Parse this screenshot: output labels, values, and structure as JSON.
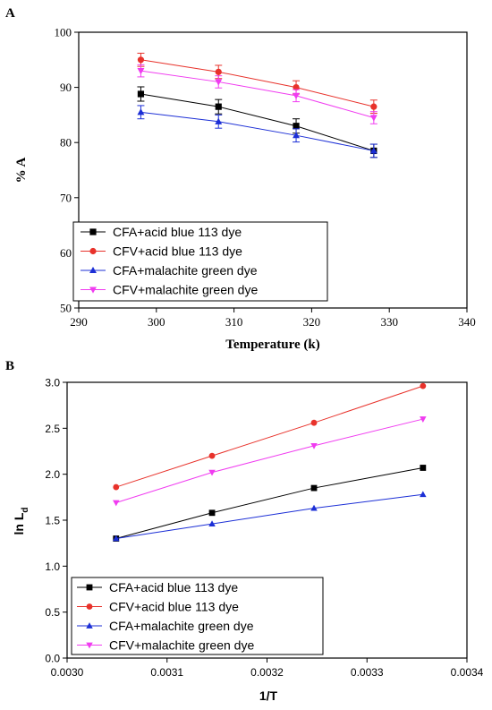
{
  "panels": [
    {
      "label": "A"
    },
    {
      "label": "B"
    }
  ],
  "chart_data": [
    {
      "type": "line",
      "panel": "A",
      "xlabel": "Temperature (k)",
      "ylabel": "% A",
      "xlim": [
        290,
        340
      ],
      "ylim": [
        50,
        100
      ],
      "xticks": [
        "290",
        "300",
        "310",
        "320",
        "330",
        "340"
      ],
      "yticks": [
        "50",
        "60",
        "70",
        "80",
        "90",
        "100"
      ],
      "x": [
        298,
        308,
        318,
        328
      ],
      "error_bars": true,
      "grid": false,
      "legend_position": "bottom-left",
      "series": [
        {
          "name": "CFA+acid blue 113 dye",
          "values": [
            88.8,
            86.5,
            83.0,
            78.5
          ],
          "errors": [
            1.3,
            1.3,
            1.3,
            1.2
          ],
          "color": "#000000",
          "marker": "square"
        },
        {
          "name": "CFV+acid blue 113 dye",
          "values": [
            95.0,
            92.8,
            90.0,
            86.5
          ],
          "errors": [
            1.2,
            1.2,
            1.2,
            1.2
          ],
          "color": "#e8322b",
          "marker": "circle"
        },
        {
          "name": "CFA+malachite green dye",
          "values": [
            85.5,
            83.8,
            81.3,
            78.5
          ],
          "errors": [
            1.2,
            1.2,
            1.2,
            1.2
          ],
          "color": "#1c2fd6",
          "marker": "triangle-up"
        },
        {
          "name": "CFV+malachite green dye",
          "values": [
            93.0,
            91.0,
            88.5,
            84.5
          ],
          "errors": [
            1.1,
            1.1,
            1.1,
            1.1
          ],
          "color": "#f03cf0",
          "marker": "triangle-down"
        }
      ]
    },
    {
      "type": "line",
      "panel": "B",
      "xlabel": "1/T",
      "ylabel": "ln L",
      "ylabel_subscript": "d",
      "xlim": [
        0.003,
        0.0034
      ],
      "ylim": [
        0.0,
        3.0
      ],
      "xticks": [
        "0.0030",
        "0.0031",
        "0.0032",
        "0.0033",
        "0.0034"
      ],
      "yticks": [
        "0.0",
        "0.5",
        "1.0",
        "1.5",
        "2.0",
        "2.5",
        "3.0"
      ],
      "x": [
        0.003049,
        0.003145,
        0.003247,
        0.003356
      ],
      "grid": false,
      "legend_position": "bottom-left",
      "series": [
        {
          "name": "CFA+acid blue 113 dye",
          "values": [
            1.3,
            1.58,
            1.85,
            2.07
          ],
          "color": "#000000",
          "marker": "square"
        },
        {
          "name": "CFV+acid blue 113 dye",
          "values": [
            1.86,
            2.2,
            2.56,
            2.96
          ],
          "color": "#e8322b",
          "marker": "circle"
        },
        {
          "name": "CFA+malachite green dye",
          "values": [
            1.3,
            1.46,
            1.63,
            1.78
          ],
          "color": "#1c2fd6",
          "marker": "triangle-up"
        },
        {
          "name": "CFV+malachite green dye",
          "values": [
            1.69,
            2.02,
            2.31,
            2.6
          ],
          "color": "#f03cf0",
          "marker": "triangle-down"
        }
      ]
    }
  ]
}
